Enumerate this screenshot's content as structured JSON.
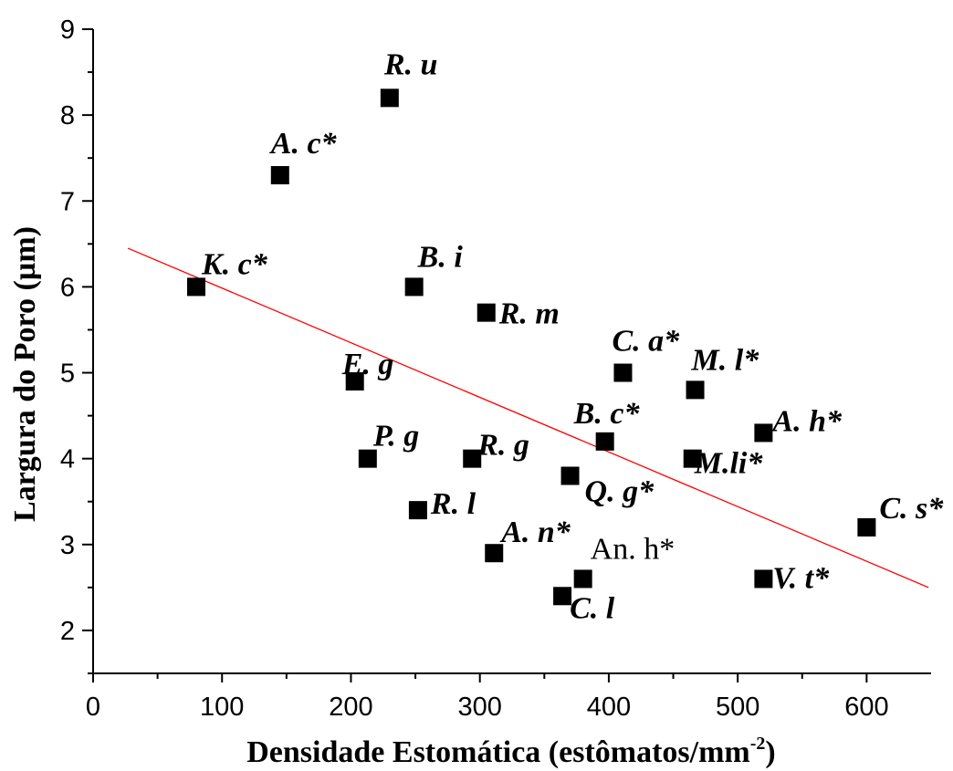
{
  "chart_data": {
    "type": "scatter",
    "xlabel": "Densidade Estomática (estômatos/mm",
    "xlabel_sup": "-2",
    "xlabel_close": ")",
    "ylabel": "Largura do Poro (µm)",
    "xlim": [
      0,
      650
    ],
    "ylim": [
      1.5,
      9
    ],
    "xticks": [
      0,
      100,
      200,
      300,
      400,
      500,
      600
    ],
    "yticks": [
      2,
      3,
      4,
      5,
      6,
      7,
      8,
      9
    ],
    "grid": false,
    "marker_color": "#000000",
    "trend_color": "#ff0000",
    "points": [
      {
        "label": "R. u",
        "x": 230,
        "y": 8.2,
        "italic": true
      },
      {
        "label": "A. c*",
        "x": 145,
        "y": 7.3,
        "italic": true
      },
      {
        "label": "K. c*",
        "x": 80,
        "y": 6.0,
        "italic": true
      },
      {
        "label": "B. i",
        "x": 249,
        "y": 6.0,
        "italic": true
      },
      {
        "label": "R. m",
        "x": 305,
        "y": 5.7,
        "italic": true
      },
      {
        "label": "E. g",
        "x": 203,
        "y": 4.9,
        "italic": true
      },
      {
        "label": "C. a*",
        "x": 411,
        "y": 5.0,
        "italic": true
      },
      {
        "label": "M. l*",
        "x": 467,
        "y": 4.8,
        "italic": true
      },
      {
        "label": "A. h*",
        "x": 520,
        "y": 4.3,
        "italic": true
      },
      {
        "label": "B. c*",
        "x": 397,
        "y": 4.2,
        "italic": true
      },
      {
        "label": "P. g",
        "x": 213,
        "y": 4.0,
        "italic": true
      },
      {
        "label": "R. g",
        "x": 294,
        "y": 4.0,
        "italic": true
      },
      {
        "label": "M.li*",
        "x": 465,
        "y": 4.0,
        "italic": true
      },
      {
        "label": "Q. g*",
        "x": 370,
        "y": 3.8,
        "italic": true
      },
      {
        "label": "R. l",
        "x": 252,
        "y": 3.4,
        "italic": true
      },
      {
        "label": "C. s*",
        "x": 600,
        "y": 3.2,
        "italic": true
      },
      {
        "label": "A. n*",
        "x": 311,
        "y": 2.9,
        "italic": true
      },
      {
        "label": "An. h*",
        "x": 380,
        "y": 2.6,
        "italic": false
      },
      {
        "label": "V. t*",
        "x": 520,
        "y": 2.6,
        "italic": true
      },
      {
        "label": "C. l",
        "x": 364,
        "y": 2.4,
        "italic": true
      }
    ],
    "trend_line": {
      "x": [
        27,
        648
      ],
      "y": [
        6.45,
        2.5
      ]
    }
  }
}
